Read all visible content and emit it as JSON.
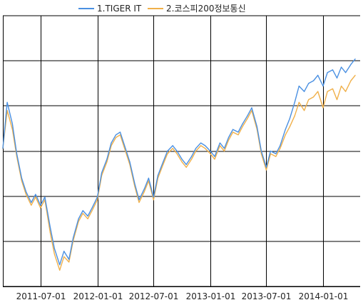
{
  "chart_data": {
    "type": "line",
    "title": "",
    "xlabel": "",
    "ylabel": "",
    "grid": true,
    "legend_position": "top",
    "x_ticks": [
      "2011-07-01",
      "2012-01-01",
      "2012-07-01",
      "2013-01-01",
      "2013-07-01",
      "2014-01-01"
    ],
    "x_range": [
      "2011-03-01",
      "2014-05-01"
    ],
    "y_tick_labels": [],
    "y_range": [
      0,
      100
    ],
    "series": [
      {
        "name": "1.TIGER IT",
        "color": "#4a90e2",
        "points": [
          [
            "2011-03-01",
            51
          ],
          [
            "2011-03-15",
            68
          ],
          [
            "2011-04-01",
            60
          ],
          [
            "2011-04-15",
            49
          ],
          [
            "2011-05-01",
            40
          ],
          [
            "2011-05-15",
            35
          ],
          [
            "2011-06-01",
            31
          ],
          [
            "2011-06-15",
            34
          ],
          [
            "2011-07-01",
            30
          ],
          [
            "2011-07-15",
            33
          ],
          [
            "2011-08-01",
            22
          ],
          [
            "2011-08-15",
            14
          ],
          [
            "2011-09-01",
            8
          ],
          [
            "2011-09-15",
            13
          ],
          [
            "2011-10-01",
            10
          ],
          [
            "2011-10-15",
            18
          ],
          [
            "2011-11-01",
            25
          ],
          [
            "2011-11-15",
            28
          ],
          [
            "2011-12-01",
            26
          ],
          [
            "2011-12-15",
            29
          ],
          [
            "2012-01-01",
            33
          ],
          [
            "2012-01-15",
            42
          ],
          [
            "2012-02-01",
            47
          ],
          [
            "2012-02-15",
            53
          ],
          [
            "2012-03-01",
            56
          ],
          [
            "2012-03-15",
            57
          ],
          [
            "2012-04-01",
            51
          ],
          [
            "2012-04-15",
            46
          ],
          [
            "2012-05-01",
            38
          ],
          [
            "2012-05-15",
            32
          ],
          [
            "2012-06-01",
            36
          ],
          [
            "2012-06-15",
            40
          ],
          [
            "2012-07-01",
            33
          ],
          [
            "2012-07-15",
            41
          ],
          [
            "2012-08-01",
            46
          ],
          [
            "2012-08-15",
            50
          ],
          [
            "2012-09-01",
            52
          ],
          [
            "2012-09-15",
            50
          ],
          [
            "2012-10-01",
            47
          ],
          [
            "2012-10-15",
            45
          ],
          [
            "2012-11-01",
            48
          ],
          [
            "2012-11-15",
            51
          ],
          [
            "2012-12-01",
            53
          ],
          [
            "2012-12-15",
            52
          ],
          [
            "2013-01-01",
            50
          ],
          [
            "2013-01-15",
            48
          ],
          [
            "2013-02-01",
            53
          ],
          [
            "2013-02-15",
            51
          ],
          [
            "2013-03-01",
            55
          ],
          [
            "2013-03-15",
            58
          ],
          [
            "2013-04-01",
            57
          ],
          [
            "2013-04-15",
            60
          ],
          [
            "2013-05-01",
            63
          ],
          [
            "2013-05-15",
            66
          ],
          [
            "2013-06-01",
            59
          ],
          [
            "2013-06-15",
            50
          ],
          [
            "2013-07-01",
            44
          ],
          [
            "2013-07-15",
            50
          ],
          [
            "2013-08-01",
            49
          ],
          [
            "2013-08-15",
            52
          ],
          [
            "2013-09-01",
            58
          ],
          [
            "2013-09-15",
            62
          ],
          [
            "2013-10-01",
            68
          ],
          [
            "2013-10-15",
            74
          ],
          [
            "2013-11-01",
            72
          ],
          [
            "2013-11-15",
            75
          ],
          [
            "2013-12-01",
            76
          ],
          [
            "2013-12-15",
            78
          ],
          [
            "2014-01-01",
            74
          ],
          [
            "2014-01-15",
            79
          ],
          [
            "2014-02-01",
            80
          ],
          [
            "2014-02-15",
            77
          ],
          [
            "2014-03-01",
            81
          ],
          [
            "2014-03-15",
            79
          ],
          [
            "2014-04-01",
            82
          ],
          [
            "2014-04-15",
            84
          ]
        ]
      },
      {
        "name": "2.코스피200정보통신",
        "color": "#f0b04a",
        "points": [
          [
            "2011-03-01",
            51
          ],
          [
            "2011-03-15",
            65
          ],
          [
            "2011-04-01",
            58
          ],
          [
            "2011-04-15",
            48
          ],
          [
            "2011-05-01",
            39
          ],
          [
            "2011-05-15",
            34
          ],
          [
            "2011-06-01",
            30
          ],
          [
            "2011-06-15",
            33
          ],
          [
            "2011-07-01",
            29
          ],
          [
            "2011-07-15",
            32
          ],
          [
            "2011-08-01",
            20
          ],
          [
            "2011-08-15",
            12
          ],
          [
            "2011-09-01",
            6
          ],
          [
            "2011-09-15",
            11
          ],
          [
            "2011-10-01",
            9
          ],
          [
            "2011-10-15",
            17
          ],
          [
            "2011-11-01",
            24
          ],
          [
            "2011-11-15",
            27
          ],
          [
            "2011-12-01",
            25
          ],
          [
            "2011-12-15",
            28
          ],
          [
            "2012-01-01",
            32
          ],
          [
            "2012-01-15",
            41
          ],
          [
            "2012-02-01",
            46
          ],
          [
            "2012-02-15",
            52
          ],
          [
            "2012-03-01",
            55
          ],
          [
            "2012-03-15",
            56
          ],
          [
            "2012-04-01",
            50
          ],
          [
            "2012-04-15",
            45
          ],
          [
            "2012-05-01",
            37
          ],
          [
            "2012-05-15",
            31
          ],
          [
            "2012-06-01",
            35
          ],
          [
            "2012-06-15",
            39
          ],
          [
            "2012-07-01",
            32
          ],
          [
            "2012-07-15",
            40
          ],
          [
            "2012-08-01",
            45
          ],
          [
            "2012-08-15",
            49
          ],
          [
            "2012-09-01",
            51
          ],
          [
            "2012-09-15",
            49
          ],
          [
            "2012-10-01",
            46
          ],
          [
            "2012-10-15",
            44
          ],
          [
            "2012-11-01",
            47
          ],
          [
            "2012-11-15",
            50
          ],
          [
            "2012-12-01",
            52
          ],
          [
            "2012-12-15",
            51
          ],
          [
            "2013-01-01",
            49
          ],
          [
            "2013-01-15",
            47
          ],
          [
            "2013-02-01",
            52
          ],
          [
            "2013-02-15",
            50
          ],
          [
            "2013-03-01",
            54
          ],
          [
            "2013-03-15",
            57
          ],
          [
            "2013-04-01",
            56
          ],
          [
            "2013-04-15",
            59
          ],
          [
            "2013-05-01",
            62
          ],
          [
            "2013-05-15",
            65
          ],
          [
            "2013-06-01",
            58
          ],
          [
            "2013-06-15",
            49
          ],
          [
            "2013-07-01",
            43
          ],
          [
            "2013-07-15",
            49
          ],
          [
            "2013-08-01",
            48
          ],
          [
            "2013-08-15",
            51
          ],
          [
            "2013-09-01",
            56
          ],
          [
            "2013-09-15",
            59
          ],
          [
            "2013-10-01",
            63
          ],
          [
            "2013-10-15",
            68
          ],
          [
            "2013-11-01",
            65
          ],
          [
            "2013-11-15",
            69
          ],
          [
            "2013-12-01",
            70
          ],
          [
            "2013-12-15",
            72
          ],
          [
            "2014-01-01",
            66
          ],
          [
            "2014-01-15",
            72
          ],
          [
            "2014-02-01",
            73
          ],
          [
            "2014-02-15",
            69
          ],
          [
            "2014-03-01",
            74
          ],
          [
            "2014-03-15",
            72
          ],
          [
            "2014-04-01",
            76
          ],
          [
            "2014-04-15",
            78
          ]
        ]
      }
    ]
  }
}
